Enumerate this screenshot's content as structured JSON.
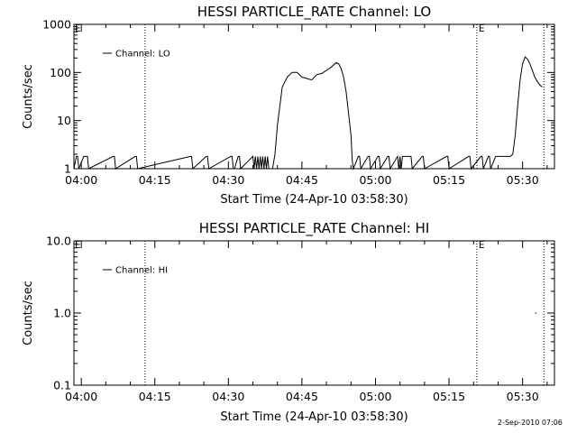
{
  "footer": {
    "timestamp": "2-Sep-2010 07:06"
  },
  "chart_data": [
    {
      "type": "line",
      "title": "HESSI PARTICLE_RATE Channel: LO",
      "xlabel": "Start Time (24-Apr-10 03:58:30)",
      "ylabel": "Counts/sec",
      "yscale": "log",
      "ylim": [
        1,
        1000
      ],
      "yticks": [
        1,
        10,
        100,
        1000
      ],
      "ytick_labels": [
        "1",
        "10",
        "100",
        "1000"
      ],
      "xlim": [
        "03:58:30",
        "05:36:30"
      ],
      "xticks": [
        "04:00",
        "04:15",
        "04:30",
        "04:45",
        "05:00",
        "05:15",
        "05:30"
      ],
      "legend": {
        "label": "Channel: LO",
        "position": "top-left"
      },
      "vlines": [
        "04:13:00",
        "05:20:40",
        "05:34:20"
      ],
      "markers": [
        {
          "x": "05:20:40",
          "text": "E"
        }
      ],
      "grid": false,
      "series": [
        {
          "name": "Channel: LO",
          "x": [
            "03:58:30",
            "03:59:00",
            "03:59:15",
            "03:59:30",
            "04:00:30",
            "04:00:45",
            "04:01:00",
            "04:01:15",
            "04:01:30",
            "04:06:30",
            "04:06:45",
            "04:07:00",
            "04:11:00",
            "04:11:15",
            "04:11:30",
            "04:22:15",
            "04:22:30",
            "04:22:45",
            "04:25:30",
            "04:25:45",
            "04:26:00",
            "04:30:30",
            "04:30:45",
            "04:31:00",
            "04:31:15",
            "04:32:00",
            "04:32:15",
            "04:32:30",
            "04:35:00",
            "04:35:15",
            "04:35:30",
            "04:35:45",
            "04:36:00",
            "04:36:15",
            "04:36:30",
            "04:36:45",
            "04:37:00",
            "04:37:15",
            "04:37:30",
            "04:37:45",
            "04:38:00",
            "04:38:15",
            "04:38:30",
            "04:39:00",
            "04:39:30",
            "04:40:00",
            "04:41:00",
            "04:42:00",
            "04:43:00",
            "04:44:00",
            "04:45:00",
            "04:46:00",
            "04:47:00",
            "04:48:00",
            "04:49:00",
            "04:50:00",
            "04:51:00",
            "04:52:00",
            "04:52:30",
            "04:53:00",
            "04:53:30",
            "04:54:00",
            "04:55:00",
            "04:55:15",
            "04:55:30",
            "04:56:30",
            "04:56:45",
            "04:57:00",
            "04:58:30",
            "04:58:45",
            "04:59:00",
            "05:00:30",
            "05:00:45",
            "05:01:00",
            "05:02:30",
            "05:02:45",
            "05:03:00",
            "05:04:30",
            "05:04:45",
            "05:05:00",
            "05:05:15",
            "05:05:30",
            "05:07:00",
            "05:07:15",
            "05:07:30",
            "05:09:30",
            "05:09:45",
            "05:10:00",
            "05:14:30",
            "05:14:45",
            "05:15:00",
            "05:19:00",
            "05:19:15",
            "05:19:30",
            "05:21:30",
            "05:21:45",
            "05:22:00",
            "05:23:00",
            "05:23:15",
            "05:23:30",
            "05:24:30",
            "05:24:45",
            "05:25:00",
            "05:25:15",
            "05:25:30",
            "05:25:45",
            "05:26:00",
            "05:26:30",
            "05:27:00",
            "05:27:30",
            "05:28:00",
            "05:28:30",
            "05:29:00",
            "05:29:30",
            "05:30:00",
            "05:30:30",
            "05:31:00",
            "05:31:30",
            "05:32:00",
            "05:32:30",
            "05:33:00",
            "05:33:30",
            "05:34:00"
          ],
          "y": [
            1,
            1.8,
            1.8,
            1,
            1.8,
            1.8,
            1.8,
            1.8,
            1,
            1.8,
            1.8,
            1,
            1.8,
            1.8,
            1,
            1.8,
            1.8,
            1,
            1.8,
            1.8,
            1,
            1.8,
            1.8,
            1,
            1,
            1.8,
            1.8,
            1,
            1.8,
            1,
            1.8,
            1,
            1.8,
            1,
            1.8,
            1,
            1.8,
            1,
            1.8,
            1,
            1.8,
            1,
            1,
            1,
            2,
            8,
            50,
            80,
            100,
            100,
            80,
            75,
            70,
            90,
            95,
            110,
            130,
            160,
            150,
            120,
            80,
            40,
            5,
            1.5,
            1,
            1.8,
            1.8,
            1,
            1.8,
            1.8,
            1,
            1.8,
            1.8,
            1,
            1.8,
            1.8,
            1,
            1.8,
            1,
            1.8,
            1,
            1.8,
            1.8,
            1.8,
            1,
            1.8,
            1.8,
            1,
            1.8,
            1.8,
            1,
            1.8,
            1.8,
            1,
            1.8,
            1.8,
            1,
            1.8,
            1.8,
            1,
            1.8,
            1.8,
            1.8,
            1.8,
            1.8,
            1.8,
            1.8,
            1.8,
            1.8,
            1.8,
            2,
            5,
            20,
            70,
            150,
            210,
            190,
            150,
            110,
            80,
            65,
            55,
            50
          ]
        }
      ]
    },
    {
      "type": "line",
      "title": "HESSI PARTICLE_RATE Channel: HI",
      "xlabel": "Start Time (24-Apr-10 03:58:30)",
      "ylabel": "Counts/sec",
      "yscale": "log",
      "ylim": [
        0.1,
        10
      ],
      "yticks": [
        0.1,
        1,
        10
      ],
      "ytick_labels": [
        "0.1",
        "1.0",
        "10.0"
      ],
      "xlim": [
        "03:58:30",
        "05:36:30"
      ],
      "xticks": [
        "04:00",
        "04:15",
        "04:30",
        "04:45",
        "05:00",
        "05:15",
        "05:30"
      ],
      "legend": {
        "label": "Channel: HI",
        "position": "top-left"
      },
      "vlines": [
        "04:13:00",
        "05:20:40",
        "05:34:20"
      ],
      "markers": [
        {
          "x": "05:20:40",
          "text": "E"
        }
      ],
      "grid": false,
      "series": [
        {
          "name": "Channel: HI",
          "x": [
            "05:32:40"
          ],
          "y": [
            1
          ]
        }
      ]
    }
  ]
}
